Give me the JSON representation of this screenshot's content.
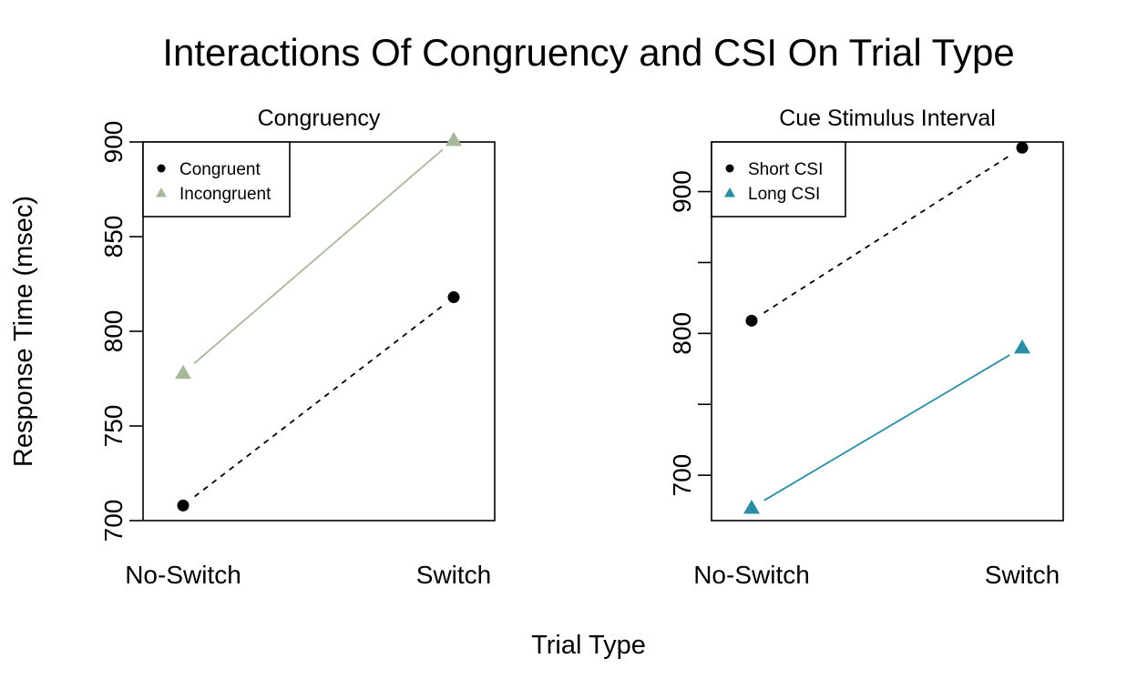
{
  "title": "Interactions Of Congruency and CSI On Trial Type",
  "xlabel": "Trial Type",
  "ylabel": "Response Time (msec)",
  "colors": {
    "black": "#000000",
    "sage": "#a8b89a",
    "teal": "#2b8ca6"
  },
  "chart_data": [
    {
      "type": "line",
      "title": "Congruency",
      "categories": [
        "No-Switch",
        "Switch"
      ],
      "ylim": [
        700,
        900
      ],
      "yticks": [
        700,
        750,
        800,
        850,
        900
      ],
      "ytick_labels": [
        "700",
        "750",
        "800",
        "850",
        "900"
      ],
      "legend_position": "top-left",
      "series": [
        {
          "name": "Congruent",
          "values": [
            708,
            818
          ],
          "color": "#000000",
          "marker": "circle",
          "line": "dashed"
        },
        {
          "name": "Incongruent",
          "values": [
            778,
            901
          ],
          "color": "#a8b89a",
          "marker": "triangle",
          "line": "solid"
        }
      ]
    },
    {
      "type": "line",
      "title": "Cue Stimulus Interval",
      "categories": [
        "No-Switch",
        "Switch"
      ],
      "ylim": [
        668,
        935
      ],
      "yticks": [
        700,
        750,
        800,
        850,
        900
      ],
      "ytick_labels": [
        "700",
        "",
        "800",
        "",
        "900"
      ],
      "legend_position": "top-left",
      "series": [
        {
          "name": "Short CSI",
          "values": [
            809,
            931
          ],
          "color": "#000000",
          "marker": "circle",
          "line": "dashed"
        },
        {
          "name": "Long CSI",
          "values": [
            677,
            790
          ],
          "color": "#2b8ca6",
          "marker": "triangle",
          "line": "solid"
        }
      ]
    }
  ]
}
